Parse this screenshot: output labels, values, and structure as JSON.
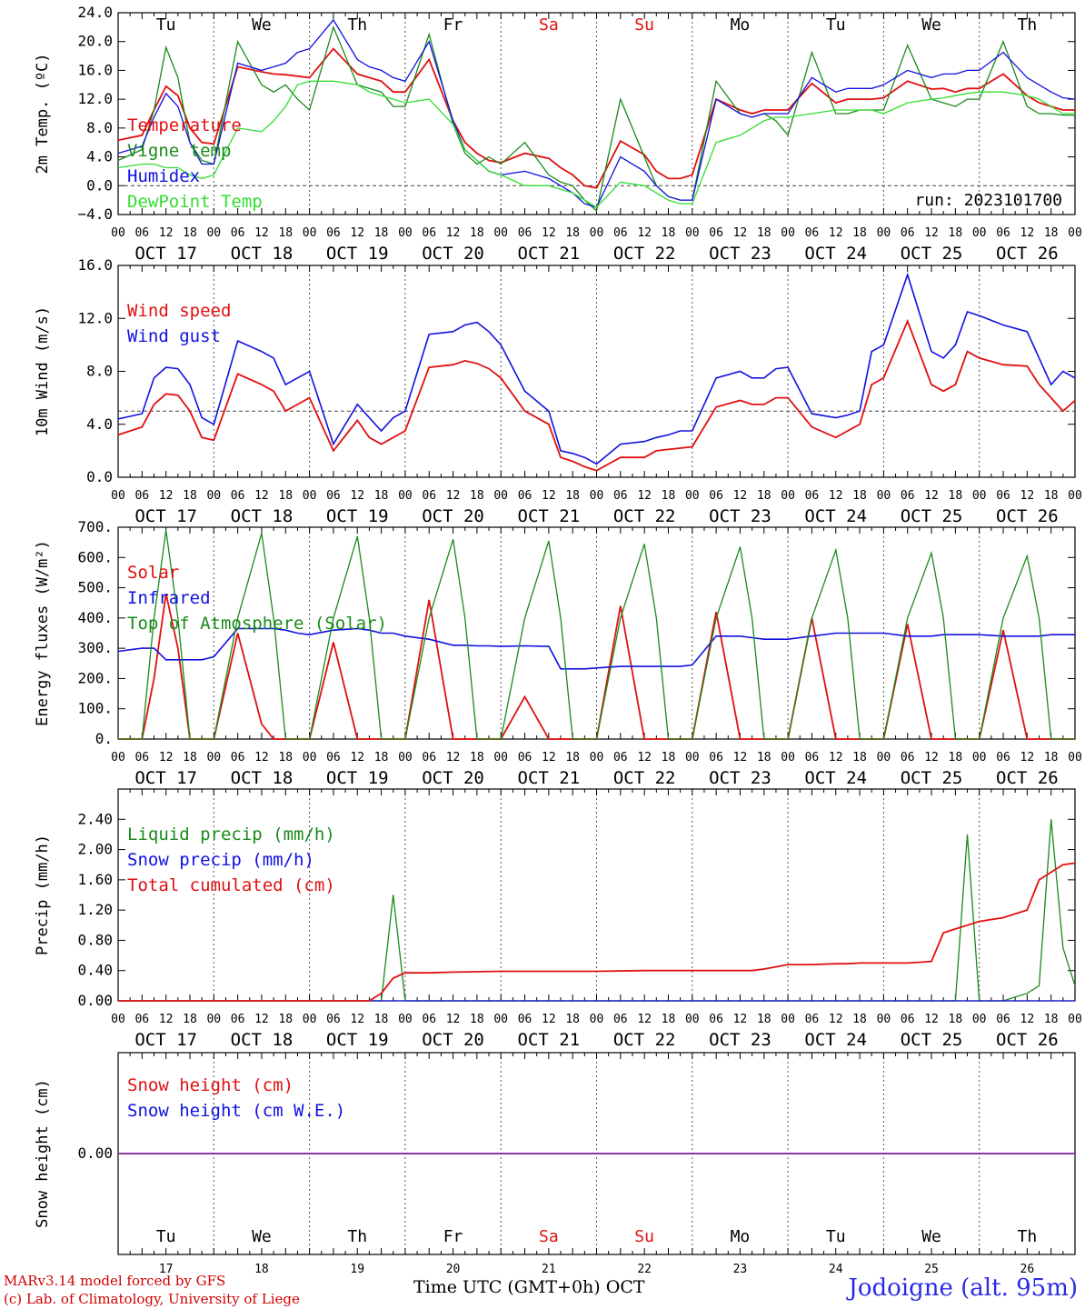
{
  "days": {
    "labels": [
      "Tu",
      "We",
      "Th",
      "Fr",
      "Sa",
      "Su",
      "Mo",
      "Tu",
      "We",
      "Th"
    ],
    "weekend_index": [
      4,
      5
    ],
    "weekend_color": "#e01010",
    "dates": [
      "OCT 17",
      "OCT 18",
      "OCT 19",
      "OCT 20",
      "OCT 21",
      "OCT 22",
      "OCT 23",
      "OCT 24",
      "OCT 25",
      "OCT 26"
    ],
    "day_numbers": [
      "17",
      "18",
      "19",
      "20",
      "21",
      "22",
      "23",
      "24",
      "25",
      "26"
    ],
    "hour_ticks": [
      "00",
      "06",
      "12",
      "18"
    ],
    "end_tick": "00"
  },
  "colors": {
    "red": "#e01010",
    "green": "#1a8a1a",
    "blue": "#1010e0",
    "light_green": "#33dd33",
    "purple": "#7a2a9a"
  },
  "footer": {
    "line1": "MARv3.14 model forced by GFS",
    "line2": "(c) Lab. of Climatology, University of Liege",
    "xlabel": "Time UTC (GMT+0h)",
    "month": "OCT",
    "station": "Jodoigne (alt. 95m)"
  },
  "chart_data": [
    {
      "type": "line",
      "id": "temp",
      "ylabel": "2m Temp. (ºC)",
      "ylim": [
        -4,
        24
      ],
      "yticks": [
        "−4.0",
        "0.0",
        "4.0",
        "8.0",
        "12.0",
        "16.0",
        "20.0",
        "24.0"
      ],
      "ref_line": 0,
      "annotation": "run: 2023101700",
      "x_hours": [
        0,
        6,
        9,
        12,
        15,
        18,
        21,
        24,
        30,
        36,
        39,
        42,
        45,
        48,
        54,
        60,
        63,
        66,
        69,
        72,
        78,
        84,
        87,
        90,
        93,
        96,
        102,
        108,
        111,
        114,
        117,
        120,
        126,
        132,
        135,
        138,
        141,
        144,
        150,
        156,
        159,
        162,
        165,
        168,
        174,
        180,
        183,
        186,
        189,
        192,
        198,
        204,
        207,
        210,
        213,
        216,
        222,
        228,
        231,
        234,
        237,
        240
      ],
      "series": [
        {
          "name": "Temperature",
          "color": "red",
          "values": [
            6.3,
            7,
            10.5,
            13.8,
            12.5,
            8,
            6,
            5.8,
            16.5,
            15.8,
            15.5,
            15.4,
            15.2,
            15,
            19,
            15.5,
            15,
            14.5,
            13,
            13,
            17.5,
            9,
            6,
            4.5,
            3.5,
            3.2,
            4.5,
            3.8,
            2.5,
            1.5,
            0,
            -0.3,
            6.2,
            4.3,
            2,
            1,
            1,
            1.5,
            12,
            10.5,
            10,
            10.5,
            10.5,
            10.5,
            14.2,
            11.5,
            12,
            12,
            12,
            12.2,
            14.5,
            13.4,
            13.5,
            13,
            13.5,
            13.5,
            15.5,
            12.5,
            11.5,
            11,
            10.5,
            10.5
          ]
        },
        {
          "name": "Vigne temp",
          "color": "green",
          "values": [
            3.5,
            5,
            10.5,
            19.2,
            15,
            6,
            3.5,
            3,
            20,
            14,
            13,
            14,
            12,
            10.5,
            22,
            14,
            13.5,
            13,
            11,
            11,
            21,
            8.5,
            4.5,
            3,
            4,
            3,
            6,
            1.5,
            0.5,
            0,
            -2,
            -3.5,
            12,
            4,
            0,
            -1.5,
            -2,
            -2,
            14.5,
            10,
            9.5,
            10,
            9,
            7,
            18.5,
            10,
            10,
            10.5,
            10.5,
            10.5,
            19.5,
            12,
            11.5,
            11,
            12,
            12,
            20,
            11,
            10,
            10,
            9.8,
            9.8
          ]
        },
        {
          "name": "Humidex",
          "color": "blue",
          "values": [
            4.5,
            5.5,
            9.5,
            12.8,
            11,
            6,
            3,
            3,
            17,
            16,
            16.5,
            17,
            18.5,
            19,
            23,
            17.5,
            16.5,
            16,
            15,
            14.5,
            20,
            9,
            5,
            3.5,
            2,
            1.5,
            2,
            1,
            0,
            -1,
            -2.5,
            -3,
            4,
            2,
            0,
            -1.5,
            -2,
            -2,
            12,
            10,
            9.5,
            10,
            10,
            10,
            15,
            13,
            13.5,
            13.5,
            13.5,
            14,
            16,
            15,
            15.5,
            15.5,
            16,
            16,
            18.5,
            15,
            14,
            13,
            12.2,
            12
          ]
        },
        {
          "name": "DewPoint Temp",
          "color": "light_green",
          "values": [
            2.5,
            3,
            3,
            2.5,
            2.5,
            1.5,
            1,
            1.5,
            8,
            7.5,
            9,
            11,
            14,
            14.5,
            14.5,
            14,
            13,
            12.5,
            12,
            11.5,
            12,
            8.5,
            5,
            3.5,
            2,
            1.5,
            0,
            0,
            -0.5,
            -1,
            -2,
            -3,
            0.5,
            0,
            -1,
            -2,
            -2.5,
            -2.5,
            6,
            7,
            8,
            9,
            9.5,
            9.5,
            10,
            10.5,
            10.5,
            10.5,
            10.5,
            10,
            11.5,
            12,
            12.2,
            12.5,
            12.8,
            13,
            13,
            12.5,
            12,
            11,
            10,
            10
          ]
        }
      ]
    },
    {
      "type": "line",
      "id": "wind",
      "ylabel": "10m Wind (m/s)",
      "ylim": [
        0,
        16
      ],
      "yticks": [
        "0.0",
        "4.0",
        "8.0",
        "12.0",
        "16.0"
      ],
      "ref_line": 5,
      "x_hours": [
        0,
        6,
        9,
        12,
        15,
        18,
        21,
        24,
        30,
        36,
        39,
        42,
        45,
        48,
        54,
        60,
        63,
        66,
        69,
        72,
        78,
        84,
        87,
        90,
        93,
        96,
        102,
        108,
        111,
        114,
        117,
        120,
        126,
        132,
        135,
        138,
        141,
        144,
        150,
        156,
        159,
        162,
        165,
        168,
        174,
        180,
        183,
        186,
        189,
        192,
        198,
        204,
        207,
        210,
        213,
        216,
        222,
        228,
        231,
        234,
        237,
        240
      ],
      "series": [
        {
          "name": "Wind speed",
          "color": "red",
          "values": [
            3.2,
            3.8,
            5.5,
            6.3,
            6.2,
            5,
            3,
            2.8,
            7.8,
            7,
            6.5,
            5,
            5.5,
            6,
            2,
            4.3,
            3,
            2.5,
            3,
            3.5,
            8.3,
            8.5,
            8.8,
            8.6,
            8.2,
            7.5,
            5,
            4,
            1.5,
            1.2,
            0.8,
            0.5,
            1.5,
            1.5,
            2,
            2.1,
            2.2,
            2.3,
            5.3,
            5.8,
            5.5,
            5.5,
            6,
            6,
            3.8,
            3,
            3.5,
            4,
            7,
            7.5,
            11.8,
            7,
            6.5,
            7,
            9.5,
            9,
            8.5,
            8.4,
            7,
            6,
            5,
            5.8
          ]
        },
        {
          "name": "Wind gust",
          "color": "blue",
          "values": [
            4.4,
            4.8,
            7.5,
            8.3,
            8.2,
            7,
            4.5,
            4,
            10.3,
            9.5,
            9,
            7,
            7.5,
            8,
            2.5,
            5.5,
            4.5,
            3.5,
            4.5,
            5,
            10.8,
            11,
            11.5,
            11.7,
            11,
            10,
            6.5,
            5,
            2,
            1.8,
            1.5,
            1,
            2.5,
            2.7,
            3,
            3.2,
            3.5,
            3.5,
            7.5,
            8,
            7.5,
            7.5,
            8.2,
            8.3,
            4.8,
            4.5,
            4.7,
            5,
            9.5,
            10,
            15.3,
            9.5,
            9,
            10,
            12.5,
            12.2,
            11.5,
            11,
            9,
            7,
            8,
            7.5
          ]
        }
      ]
    },
    {
      "type": "line",
      "id": "energy",
      "ylabel": "Energy fluxes (W/m²)",
      "ylim": [
        0,
        700
      ],
      "yticks": [
        "0.",
        "100.",
        "200.",
        "300.",
        "400.",
        "500.",
        "600.",
        "700."
      ],
      "x_hours": [
        0,
        6,
        9,
        12,
        15,
        18,
        21,
        24,
        30,
        36,
        39,
        42,
        45,
        48,
        54,
        60,
        63,
        66,
        69,
        72,
        78,
        84,
        87,
        90,
        93,
        96,
        102,
        108,
        111,
        114,
        117,
        120,
        126,
        132,
        135,
        138,
        141,
        144,
        150,
        156,
        159,
        162,
        165,
        168,
        174,
        180,
        183,
        186,
        189,
        192,
        198,
        204,
        207,
        210,
        213,
        216,
        222,
        228,
        231,
        234,
        237,
        240
      ],
      "series": [
        {
          "name": "Solar",
          "color": "red",
          "values": [
            0,
            0,
            200,
            480,
            300,
            0,
            0,
            0,
            350,
            50,
            0,
            0,
            0,
            0,
            320,
            0,
            0,
            0,
            0,
            0,
            460,
            0,
            0,
            0,
            0,
            0,
            140,
            0,
            0,
            0,
            0,
            0,
            440,
            0,
            0,
            0,
            0,
            0,
            420,
            0,
            0,
            0,
            0,
            0,
            400,
            0,
            0,
            0,
            0,
            0,
            380,
            0,
            0,
            0,
            0,
            0,
            360,
            0,
            0,
            0,
            0,
            0
          ]
        },
        {
          "name": "Infrared",
          "color": "blue",
          "values": [
            290,
            300,
            300,
            262,
            262,
            262,
            262,
            272,
            365,
            365,
            365,
            360,
            350,
            345,
            360,
            365,
            360,
            350,
            350,
            340,
            330,
            310,
            310,
            308,
            308,
            306,
            308,
            306,
            232,
            232,
            232,
            235,
            240,
            240,
            240,
            240,
            240,
            245,
            340,
            340,
            335,
            330,
            330,
            330,
            340,
            350,
            350,
            350,
            350,
            350,
            340,
            340,
            345,
            345,
            345,
            345,
            340,
            340,
            340,
            345,
            345,
            345
          ]
        },
        {
          "name": "Top of Atmosphere (Solar)",
          "color": "green",
          "values": [
            0,
            0,
            400,
            690,
            400,
            0,
            0,
            0,
            400,
            680,
            400,
            0,
            0,
            0,
            400,
            670,
            400,
            0,
            0,
            0,
            400,
            660,
            400,
            0,
            0,
            0,
            400,
            655,
            400,
            0,
            0,
            0,
            400,
            645,
            400,
            0,
            0,
            0,
            400,
            635,
            400,
            0,
            0,
            0,
            400,
            625,
            400,
            0,
            0,
            0,
            400,
            615,
            400,
            0,
            0,
            0,
            400,
            605,
            400,
            0,
            0,
            0
          ]
        }
      ]
    },
    {
      "type": "line",
      "id": "precip",
      "ylabel": "Precip (mm/h)",
      "ylim": [
        0,
        2.8
      ],
      "yticks": [
        "0.00",
        "0.40",
        "0.80",
        "1.20",
        "1.60",
        "2.00",
        "2.40"
      ],
      "x_hours": [
        0,
        24,
        48,
        60,
        63,
        66,
        69,
        72,
        78,
        84,
        96,
        108,
        120,
        132,
        144,
        156,
        159,
        162,
        165,
        168,
        174,
        180,
        183,
        186,
        189,
        192,
        198,
        204,
        207,
        210,
        213,
        216,
        222,
        228,
        231,
        234,
        237,
        240
      ],
      "series": [
        {
          "name": "Liquid precip (mm/h)",
          "color": "green",
          "values": [
            0,
            0,
            0,
            0,
            0,
            0,
            1.4,
            0,
            0,
            0,
            0,
            0,
            0,
            0,
            0,
            0,
            0,
            0,
            0,
            0,
            0,
            0,
            0,
            0,
            0,
            0,
            0,
            0,
            0,
            0,
            2.2,
            0,
            0,
            0.1,
            0.2,
            2.4,
            0.7,
            0.2
          ]
        },
        {
          "name": "Snow precip (mm/h)",
          "color": "blue",
          "values": [
            0,
            0,
            0,
            0,
            0,
            0,
            0,
            0,
            0,
            0,
            0,
            0,
            0,
            0,
            0,
            0,
            0,
            0,
            0,
            0,
            0,
            0,
            0,
            0,
            0,
            0,
            0,
            0,
            0,
            0,
            0,
            0,
            0,
            0,
            0,
            0,
            0,
            0
          ]
        },
        {
          "name": "Total cumulated (cm)",
          "color": "red",
          "values": [
            0,
            0,
            0,
            0,
            0,
            0.1,
            0.3,
            0.37,
            0.37,
            0.38,
            0.39,
            0.39,
            0.39,
            0.4,
            0.4,
            0.4,
            0.4,
            0.42,
            0.45,
            0.48,
            0.48,
            0.49,
            0.49,
            0.5,
            0.5,
            0.5,
            0.5,
            0.52,
            0.9,
            0.95,
            1,
            1.05,
            1.1,
            1.2,
            1.6,
            1.7,
            1.8,
            1.82
          ]
        }
      ]
    },
    {
      "type": "line",
      "id": "snow",
      "ylabel": "Snow height (cm)",
      "ylim": [
        -1,
        1
      ],
      "yticks": [
        "0.00"
      ],
      "x_hours": [
        0,
        240
      ],
      "series": [
        {
          "name": "Snow height (cm)",
          "color": "red",
          "values": [
            0,
            0
          ]
        },
        {
          "name": "Snow height (cm W.E.)",
          "color": "blue",
          "values": [
            0,
            0
          ]
        }
      ]
    }
  ]
}
